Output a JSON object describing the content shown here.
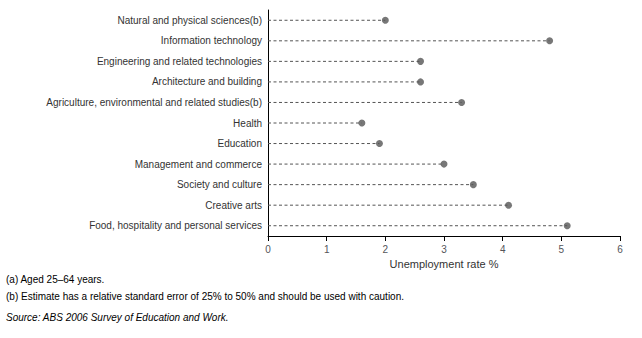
{
  "chart_data": {
    "type": "dot",
    "orientation": "horizontal",
    "categories": [
      "Natural and physical sciences(b)",
      "Information technology",
      "Engineering and related technologies",
      "Architecture and building",
      "Agriculture, environmental and related studies(b)",
      "Health",
      "Education",
      "Management and commerce",
      "Society and culture",
      "Creative arts",
      "Food, hospitality and personal services"
    ],
    "values": [
      2.0,
      4.8,
      2.6,
      2.6,
      3.3,
      1.6,
      1.9,
      3.0,
      3.5,
      4.1,
      5.1
    ],
    "color": "#555555",
    "marker": "circle",
    "line_style": "dashed",
    "xlabel": "Unemployment rate %",
    "xlim": [
      0,
      6
    ],
    "xticks": [
      0,
      1,
      2,
      3,
      4,
      5,
      6
    ],
    "grid": false,
    "annotations": [
      "(a) Aged 25–64 years.",
      "(b) Estimate has a relative standard error of 25% to 50% and should be used with caution.",
      "Source: ABS 2006 Survey of Education and Work."
    ]
  }
}
